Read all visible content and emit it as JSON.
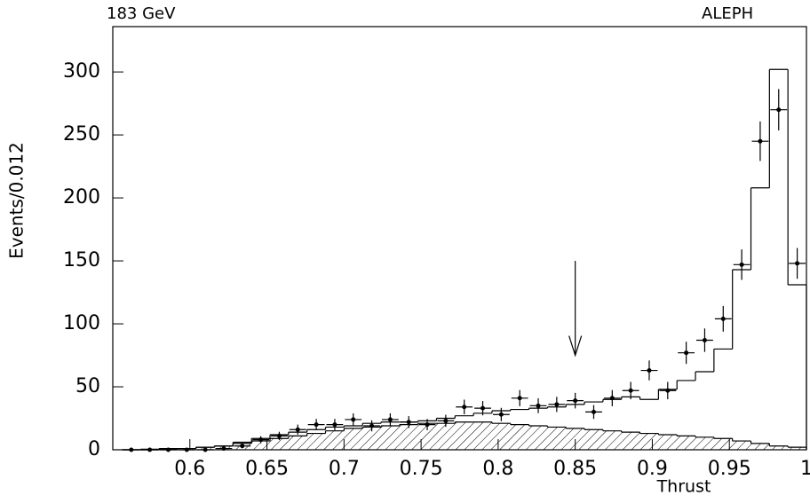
{
  "chart_data": {
    "type": "histogram",
    "title": "ALEPH",
    "subtitle": "183 GeV",
    "x_label": "Thrust",
    "y_label": "Events/0.012",
    "bins": [
      0.556,
      0.568,
      0.58,
      0.592,
      0.604,
      0.616,
      0.628,
      0.64,
      0.652,
      0.664,
      0.676,
      0.688,
      0.7,
      0.712,
      0.724,
      0.736,
      0.748,
      0.76,
      0.772,
      0.784,
      0.796,
      0.808,
      0.82,
      0.832,
      0.844,
      0.856,
      0.868,
      0.88,
      0.892,
      0.904,
      0.916,
      0.928,
      0.94,
      0.952,
      0.964,
      0.976,
      0.988,
      1.0
    ],
    "series": [
      {
        "style": "hatched",
        "color": "#000000",
        "values": [
          0,
          0,
          0.5,
          1,
          2,
          3,
          5,
          7,
          9,
          11,
          13,
          15,
          17,
          18,
          19,
          20,
          21,
          21,
          22,
          22,
          21,
          20,
          19,
          18,
          17,
          16,
          15,
          14,
          13,
          12,
          11,
          10,
          9,
          7,
          5,
          3,
          2
        ]
      },
      {
        "style": "step",
        "color": "#000000",
        "values": [
          0,
          0.5,
          1,
          1,
          2,
          3,
          6,
          9,
          12,
          14,
          16,
          18,
          19,
          21,
          22,
          22,
          23,
          25,
          27,
          29,
          31,
          32,
          33,
          34,
          36,
          38,
          40,
          42,
          40,
          48,
          55,
          62,
          80,
          143,
          208,
          302,
          131
        ]
      },
      {
        "style": "points",
        "color": "#000000",
        "values": [
          0,
          0,
          0,
          0,
          0,
          1,
          3,
          8,
          11,
          16,
          20,
          20,
          24,
          19,
          24,
          22,
          20,
          23,
          34,
          33,
          28,
          41,
          35,
          36,
          39,
          30,
          41,
          47,
          63,
          47,
          77,
          87,
          104,
          147,
          245,
          270,
          148
        ],
        "errors": [
          0,
          0,
          0,
          0,
          0,
          1,
          1.7,
          2.8,
          3.3,
          4,
          4.5,
          4.5,
          4.9,
          4.4,
          4.9,
          4.7,
          4.5,
          4.8,
          5.8,
          5.7,
          5.3,
          6.4,
          5.9,
          6,
          6.2,
          5.5,
          6.4,
          6.9,
          7.9,
          6.9,
          8.8,
          9.3,
          10.2,
          12.1,
          15.7,
          16.4,
          12.2
        ]
      }
    ],
    "arrow": {
      "x": 0.85,
      "y_from": 150,
      "y_to": 75
    },
    "xlim": [
      0.55,
      1.0
    ],
    "xticks": [
      0.6,
      0.65,
      0.7,
      0.75,
      0.8,
      0.85,
      0.9,
      0.95,
      1
    ],
    "ylim": [
      0,
      336
    ],
    "yticks": [
      0,
      50,
      100,
      150,
      200,
      250,
      300
    ],
    "grid": false
  }
}
